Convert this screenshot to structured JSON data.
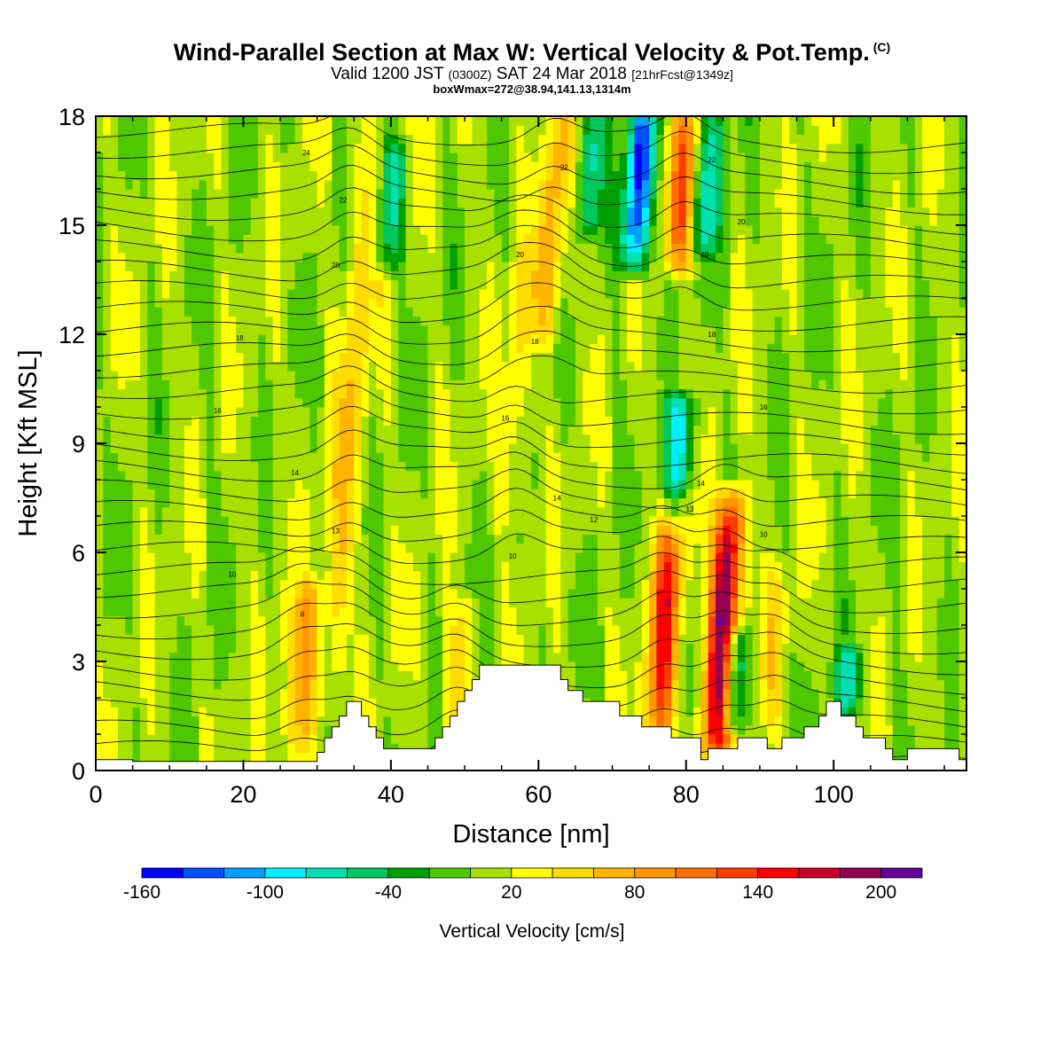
{
  "title": {
    "main": "Wind-Parallel Section at Max W: Vertical Velocity & Pot.Temp.",
    "copyright": "(C)",
    "valid_prefix": "Valid 1200 JST",
    "valid_utc": "(0300Z)",
    "valid_date": "SAT 24 Mar 2018",
    "forecast": "[21hrFcst@1349z]",
    "box": "boxWmax=272@38.94,141.13,1314m"
  },
  "chart_data": {
    "type": "heatmap",
    "xlabel": "Distance [nm]",
    "ylabel": "Height [Kft MSL]",
    "xlim": [
      0,
      118
    ],
    "ylim": [
      0,
      18
    ],
    "x_ticks": [
      0,
      20,
      40,
      60,
      80,
      100
    ],
    "y_ticks": [
      0,
      3,
      6,
      9,
      12,
      15,
      18
    ],
    "colorbar": {
      "label": "Vertical Velocity [cm/s]",
      "tick_labels": [
        "-160",
        "-100",
        "-40",
        "20",
        "80",
        "140",
        "200"
      ],
      "tick_values": [
        -160,
        -100,
        -40,
        20,
        80,
        140,
        200
      ],
      "min": -160,
      "max": 220,
      "step": 20,
      "colors": [
        "#0000ff",
        "#0050ff",
        "#00a0ff",
        "#00f0ff",
        "#00e0b0",
        "#00c860",
        "#00a000",
        "#50c800",
        "#a8e000",
        "#ffff00",
        "#ffdc00",
        "#ffb400",
        "#ff9600",
        "#ff6e00",
        "#ff3c00",
        "#ff0000",
        "#c80028",
        "#960050",
        "#640096"
      ]
    },
    "updraft_cores": [
      {
        "x": 34.5,
        "y_bottom": 1.5,
        "y_top": 18,
        "peak": 60
      },
      {
        "x": 28,
        "y_bottom": 0.5,
        "y_top": 5,
        "peak": 85
      },
      {
        "x": 49,
        "y_bottom": 1,
        "y_top": 4.5,
        "peak": 50
      },
      {
        "x": 57,
        "y_bottom": 7,
        "y_top": 14.5,
        "peak": 45
      },
      {
        "x": 62,
        "y_bottom": 12,
        "y_top": 18,
        "peak": 75
      },
      {
        "x": 77,
        "y_bottom": 1,
        "y_top": 6.5,
        "peak": 140
      },
      {
        "x": 79.5,
        "y_bottom": 14,
        "y_top": 18,
        "peak": 110
      },
      {
        "x": 85,
        "y_bottom": 0.5,
        "y_top": 7.5,
        "peak": 210
      },
      {
        "x": 92,
        "y_bottom": 1.5,
        "y_top": 5.5,
        "peak": 40
      }
    ],
    "downdraft_cores": [
      {
        "x": 73.5,
        "y_bottom": 14,
        "y_top": 18,
        "peak": -140
      },
      {
        "x": 79,
        "y_bottom": 8,
        "y_top": 10,
        "peak": -80
      },
      {
        "x": 83,
        "y_bottom": 14.5,
        "y_top": 18,
        "peak": -70
      },
      {
        "x": 40,
        "y_bottom": 14,
        "y_top": 17,
        "peak": -60
      },
      {
        "x": 86.5,
        "y_bottom": 1.5,
        "y_top": 3.5,
        "peak": -70
      },
      {
        "x": 102,
        "y_bottom": 2,
        "y_top": 3,
        "peak": -60
      },
      {
        "x": 67,
        "y_bottom": 15,
        "y_top": 18,
        "peak": -50
      }
    ],
    "theta_contour_labels": [
      {
        "text": "24",
        "x": 28.5,
        "y": 17.0
      },
      {
        "text": "22",
        "x": 33.5,
        "y": 15.7
      },
      {
        "text": "22",
        "x": 63.5,
        "y": 16.6
      },
      {
        "text": "22",
        "x": 83.5,
        "y": 16.8
      },
      {
        "text": "20",
        "x": 32.5,
        "y": 13.9
      },
      {
        "text": "20",
        "x": 57.5,
        "y": 14.2
      },
      {
        "text": "20",
        "x": 82.5,
        "y": 14.2
      },
      {
        "text": "20",
        "x": 87.5,
        "y": 15.1
      },
      {
        "text": "18",
        "x": 19.5,
        "y": 11.9
      },
      {
        "text": "18",
        "x": 59.5,
        "y": 11.8
      },
      {
        "text": "18",
        "x": 83.5,
        "y": 12.0
      },
      {
        "text": "16",
        "x": 16.5,
        "y": 9.9
      },
      {
        "text": "16",
        "x": 55.5,
        "y": 9.7
      },
      {
        "text": "16",
        "x": 90.5,
        "y": 10.0
      },
      {
        "text": "14",
        "x": 27.0,
        "y": 8.2
      },
      {
        "text": "14",
        "x": 62.5,
        "y": 7.5
      },
      {
        "text": "14",
        "x": 82.0,
        "y": 7.9
      },
      {
        "text": "13",
        "x": 32.5,
        "y": 6.6
      },
      {
        "text": "13",
        "x": 80.5,
        "y": 7.2
      },
      {
        "text": "12",
        "x": 67.5,
        "y": 6.9
      },
      {
        "text": "10",
        "x": 18.5,
        "y": 5.4
      },
      {
        "text": "10",
        "x": 56.5,
        "y": 5.9
      },
      {
        "text": "10",
        "x": 90.5,
        "y": 6.5
      },
      {
        "text": "8",
        "x": 28.0,
        "y": 4.3
      }
    ],
    "terrain": [
      [
        0,
        0.3
      ],
      [
        5,
        0.3
      ],
      [
        5,
        0.25
      ],
      [
        30,
        0.25
      ],
      [
        30,
        0.5
      ],
      [
        31,
        0.5
      ],
      [
        31,
        0.9
      ],
      [
        32,
        0.9
      ],
      [
        32,
        1.2
      ],
      [
        33,
        1.2
      ],
      [
        33,
        1.5
      ],
      [
        34,
        1.5
      ],
      [
        34,
        1.9
      ],
      [
        36,
        1.9
      ],
      [
        36,
        1.5
      ],
      [
        37,
        1.5
      ],
      [
        37,
        1.2
      ],
      [
        38,
        1.2
      ],
      [
        38,
        0.9
      ],
      [
        39,
        0.9
      ],
      [
        39,
        0.6
      ],
      [
        46,
        0.6
      ],
      [
        46,
        0.9
      ],
      [
        47,
        0.9
      ],
      [
        47,
        1.2
      ],
      [
        48,
        1.2
      ],
      [
        48,
        1.5
      ],
      [
        49,
        1.5
      ],
      [
        49,
        1.9
      ],
      [
        50,
        1.9
      ],
      [
        50,
        2.2
      ],
      [
        51,
        2.2
      ],
      [
        51,
        2.5
      ],
      [
        52,
        2.5
      ],
      [
        52,
        2.9
      ],
      [
        63,
        2.9
      ],
      [
        63,
        2.5
      ],
      [
        64,
        2.5
      ],
      [
        64,
        2.2
      ],
      [
        66,
        2.2
      ],
      [
        66,
        1.9
      ],
      [
        71,
        1.9
      ],
      [
        71,
        1.5
      ],
      [
        74,
        1.5
      ],
      [
        74,
        1.2
      ],
      [
        78,
        1.2
      ],
      [
        78,
        0.9
      ],
      [
        82,
        0.9
      ],
      [
        82,
        0.3
      ],
      [
        83,
        0.3
      ],
      [
        83,
        0.6
      ],
      [
        87,
        0.6
      ],
      [
        87,
        0.9
      ],
      [
        91,
        0.9
      ],
      [
        91,
        0.6
      ],
      [
        93,
        0.6
      ],
      [
        93,
        0.9
      ],
      [
        96,
        0.9
      ],
      [
        96,
        1.2
      ],
      [
        98,
        1.2
      ],
      [
        98,
        1.5
      ],
      [
        99,
        1.5
      ],
      [
        99,
        1.9
      ],
      [
        101,
        1.9
      ],
      [
        101,
        1.5
      ],
      [
        103,
        1.5
      ],
      [
        103,
        1.2
      ],
      [
        104,
        1.2
      ],
      [
        104,
        0.9
      ],
      [
        107,
        0.9
      ],
      [
        107,
        0.6
      ],
      [
        108,
        0.6
      ],
      [
        108,
        0.3
      ],
      [
        110,
        0.3
      ],
      [
        110,
        0.6
      ],
      [
        117,
        0.6
      ],
      [
        117,
        0.3
      ],
      [
        118,
        0.3
      ]
    ],
    "grid": false,
    "legend": "bottom"
  }
}
